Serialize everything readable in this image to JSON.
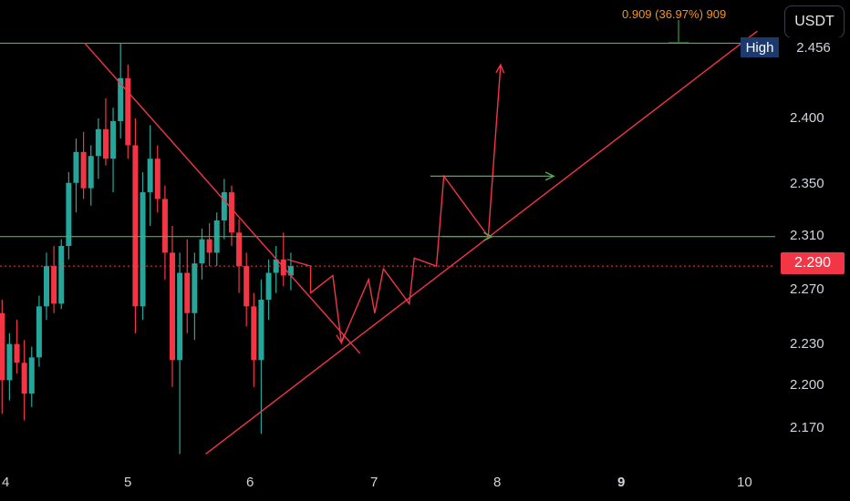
{
  "toolbar": {
    "currency_label": "USDT"
  },
  "price_axis": {
    "high_label": "High",
    "high_value": "2.456",
    "last_price": "2.290",
    "ticks": [
      "2.400",
      "2.350",
      "2.310",
      "2.270",
      "2.230",
      "2.200",
      "2.170"
    ]
  },
  "time_axis": {
    "ticks": [
      "4",
      "5",
      "6",
      "7",
      "8",
      "9",
      "10"
    ],
    "bold_tick": "9"
  },
  "measure": {
    "label": "0.909 (36.97%) 909"
  },
  "colors": {
    "up": "#26a69a",
    "down": "#f23645",
    "trendline": "#f23645",
    "level": "#4caf50",
    "measure": "#f7931a",
    "background": "#000000"
  },
  "chart_data": {
    "type": "candlestick",
    "price_ticks": [
      2.4,
      2.35,
      2.31,
      2.27,
      2.23,
      2.2,
      2.17
    ],
    "time_ticks": [
      4,
      5,
      6,
      7,
      8,
      9,
      10
    ],
    "high": 2.456,
    "last_price": 2.29,
    "levels": [
      2.456,
      2.312
    ],
    "ohlc": [
      {
        "o": 2.255,
        "h": 2.265,
        "l": 2.18,
        "c": 2.205
      },
      {
        "o": 2.205,
        "h": 2.24,
        "l": 2.19,
        "c": 2.232
      },
      {
        "o": 2.232,
        "h": 2.25,
        "l": 2.21,
        "c": 2.218
      },
      {
        "o": 2.218,
        "h": 2.235,
        "l": 2.175,
        "c": 2.195
      },
      {
        "o": 2.195,
        "h": 2.23,
        "l": 2.185,
        "c": 2.222
      },
      {
        "o": 2.222,
        "h": 2.268,
        "l": 2.215,
        "c": 2.26
      },
      {
        "o": 2.26,
        "h": 2.3,
        "l": 2.25,
        "c": 2.29
      },
      {
        "o": 2.29,
        "h": 2.305,
        "l": 2.255,
        "c": 2.262
      },
      {
        "o": 2.262,
        "h": 2.31,
        "l": 2.258,
        "c": 2.305
      },
      {
        "o": 2.305,
        "h": 2.36,
        "l": 2.295,
        "c": 2.352
      },
      {
        "o": 2.352,
        "h": 2.385,
        "l": 2.33,
        "c": 2.375
      },
      {
        "o": 2.375,
        "h": 2.39,
        "l": 2.34,
        "c": 2.348
      },
      {
        "o": 2.348,
        "h": 2.38,
        "l": 2.335,
        "c": 2.372
      },
      {
        "o": 2.372,
        "h": 2.4,
        "l": 2.355,
        "c": 2.392
      },
      {
        "o": 2.392,
        "h": 2.415,
        "l": 2.365,
        "c": 2.37
      },
      {
        "o": 2.37,
        "h": 2.408,
        "l": 2.345,
        "c": 2.398
      },
      {
        "o": 2.398,
        "h": 2.456,
        "l": 2.385,
        "c": 2.43
      },
      {
        "o": 2.43,
        "h": 2.44,
        "l": 2.37,
        "c": 2.38
      },
      {
        "o": 2.38,
        "h": 2.4,
        "l": 2.24,
        "c": 2.26
      },
      {
        "o": 2.26,
        "h": 2.36,
        "l": 2.25,
        "c": 2.345
      },
      {
        "o": 2.345,
        "h": 2.395,
        "l": 2.32,
        "c": 2.37
      },
      {
        "o": 2.37,
        "h": 2.38,
        "l": 2.33,
        "c": 2.34
      },
      {
        "o": 2.34,
        "h": 2.35,
        "l": 2.28,
        "c": 2.3
      },
      {
        "o": 2.3,
        "h": 2.32,
        "l": 2.2,
        "c": 2.22
      },
      {
        "o": 2.22,
        "h": 2.3,
        "l": 2.15,
        "c": 2.285
      },
      {
        "o": 2.285,
        "h": 2.31,
        "l": 2.24,
        "c": 2.255
      },
      {
        "o": 2.255,
        "h": 2.3,
        "l": 2.235,
        "c": 2.292
      },
      {
        "o": 2.292,
        "h": 2.318,
        "l": 2.28,
        "c": 2.31
      },
      {
        "o": 2.31,
        "h": 2.322,
        "l": 2.29,
        "c": 2.3
      },
      {
        "o": 2.3,
        "h": 2.33,
        "l": 2.29,
        "c": 2.324
      },
      {
        "o": 2.324,
        "h": 2.355,
        "l": 2.31,
        "c": 2.345
      },
      {
        "o": 2.345,
        "h": 2.35,
        "l": 2.305,
        "c": 2.315
      },
      {
        "o": 2.315,
        "h": 2.325,
        "l": 2.27,
        "c": 2.29
      },
      {
        "o": 2.29,
        "h": 2.3,
        "l": 2.245,
        "c": 2.26
      },
      {
        "o": 2.26,
        "h": 2.27,
        "l": 2.2,
        "c": 2.22
      },
      {
        "o": 2.22,
        "h": 2.28,
        "l": 2.165,
        "c": 2.265
      },
      {
        "o": 2.265,
        "h": 2.295,
        "l": 2.25,
        "c": 2.285
      },
      {
        "o": 2.285,
        "h": 2.305,
        "l": 2.27,
        "c": 2.295
      },
      {
        "o": 2.295,
        "h": 2.315,
        "l": 2.275,
        "c": 2.283
      },
      {
        "o": 2.283,
        "h": 2.3,
        "l": 2.272,
        "c": 2.29
      }
    ],
    "drawings": {
      "trendlines": [
        {
          "from": {
            "t": 4.65,
            "p": 2.456
          },
          "to": {
            "t": 6.88,
            "p": 2.225
          }
        },
        {
          "from": {
            "t": 5.63,
            "p": 2.15
          },
          "to": {
            "t": 10.1,
            "p": 2.465
          }
        }
      ],
      "target_path": [
        {
          "t": 6.29,
          "p": 2.295
        },
        {
          "t": 6.48,
          "p": 2.29
        },
        {
          "t": 6.48,
          "p": 2.27
        },
        {
          "t": 6.66,
          "p": 2.283
        },
        {
          "t": 6.73,
          "p": 2.233
        },
        {
          "t": 6.95,
          "p": 2.28
        },
        {
          "t": 7.0,
          "p": 2.255
        },
        {
          "t": 7.07,
          "p": 2.288
        },
        {
          "t": 7.28,
          "p": 2.262
        },
        {
          "t": 7.32,
          "p": 2.296
        },
        {
          "t": 7.5,
          "p": 2.29
        },
        {
          "t": 7.56,
          "p": 2.357
        },
        {
          "t": 7.92,
          "p": 2.312
        },
        {
          "t": 8.02,
          "p": 2.44
        }
      ],
      "horizontal_arrows": [
        {
          "from": {
            "t": 7.45,
            "p": 2.357
          },
          "to": {
            "t": 8.45,
            "p": 2.357
          }
        },
        {
          "from": {
            "t": 7.55,
            "p": 2.312
          },
          "to": {
            "t": 7.95,
            "p": 2.312
          }
        }
      ]
    }
  }
}
